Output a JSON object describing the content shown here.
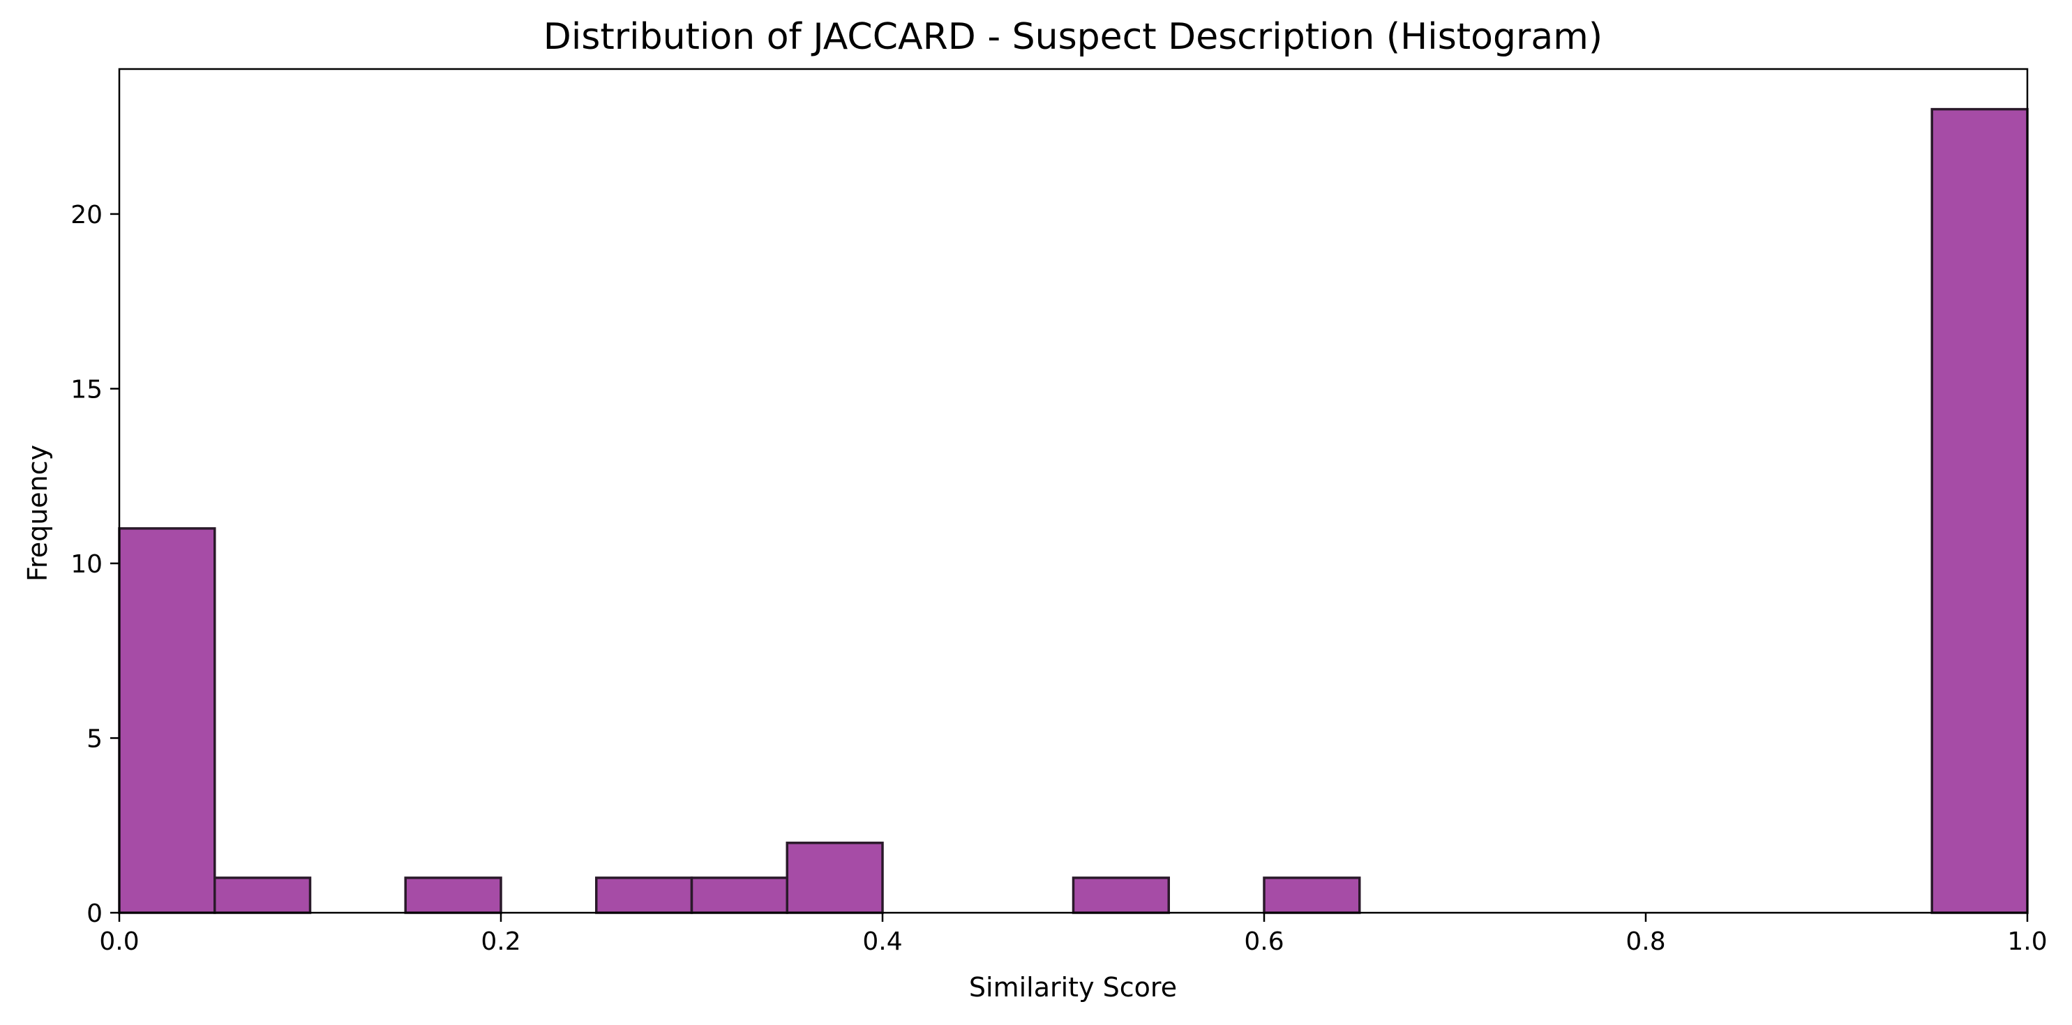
{
  "chart_data": {
    "type": "bar",
    "title": "Distribution of JACCARD - Suspect Description (Histogram)",
    "xlabel": "Similarity Score",
    "ylabel": "Frequency",
    "xlim": [
      0,
      1
    ],
    "ylim": [
      0,
      24.15
    ],
    "bin_width": 0.05,
    "bins": [
      {
        "start": 0.0,
        "end": 0.05,
        "count": 11
      },
      {
        "start": 0.05,
        "end": 0.1,
        "count": 1
      },
      {
        "start": 0.1,
        "end": 0.15,
        "count": 0
      },
      {
        "start": 0.15,
        "end": 0.2,
        "count": 1
      },
      {
        "start": 0.2,
        "end": 0.25,
        "count": 0
      },
      {
        "start": 0.25,
        "end": 0.3,
        "count": 1
      },
      {
        "start": 0.3,
        "end": 0.35,
        "count": 1
      },
      {
        "start": 0.35,
        "end": 0.4,
        "count": 2
      },
      {
        "start": 0.4,
        "end": 0.45,
        "count": 0
      },
      {
        "start": 0.45,
        "end": 0.5,
        "count": 0
      },
      {
        "start": 0.5,
        "end": 0.55,
        "count": 1
      },
      {
        "start": 0.55,
        "end": 0.6,
        "count": 0
      },
      {
        "start": 0.6,
        "end": 0.65,
        "count": 1
      },
      {
        "start": 0.65,
        "end": 0.7,
        "count": 0
      },
      {
        "start": 0.7,
        "end": 0.75,
        "count": 0
      },
      {
        "start": 0.75,
        "end": 0.8,
        "count": 0
      },
      {
        "start": 0.8,
        "end": 0.85,
        "count": 0
      },
      {
        "start": 0.85,
        "end": 0.9,
        "count": 0
      },
      {
        "start": 0.9,
        "end": 0.95,
        "count": 0
      },
      {
        "start": 0.95,
        "end": 1.0,
        "count": 23
      }
    ],
    "x_ticks": [
      {
        "value": 0.0,
        "label": "0.0"
      },
      {
        "value": 0.2,
        "label": "0.2"
      },
      {
        "value": 0.4,
        "label": "0.4"
      },
      {
        "value": 0.6,
        "label": "0.6"
      },
      {
        "value": 0.8,
        "label": "0.8"
      },
      {
        "value": 1.0,
        "label": "1.0"
      }
    ],
    "y_ticks": [
      {
        "value": 0,
        "label": "0"
      },
      {
        "value": 5,
        "label": "5"
      },
      {
        "value": 10,
        "label": "10"
      },
      {
        "value": 15,
        "label": "15"
      },
      {
        "value": 20,
        "label": "20"
      }
    ],
    "grid": false,
    "legend": "none",
    "colors": {
      "bar_fill": "#a64ca6",
      "bar_edge": "#2a1a2a",
      "axis": "#000000"
    }
  }
}
